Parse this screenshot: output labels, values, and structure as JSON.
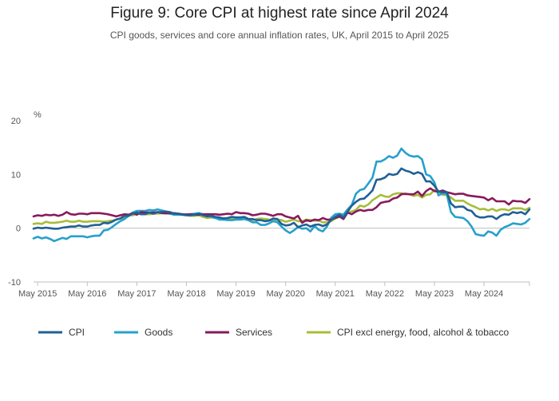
{
  "header": {
    "title": "Figure 9: Core CPI at highest rate since April 2024",
    "subtitle": "CPI goods, services and core annual inflation rates, UK, April 2015 to April 2025"
  },
  "chart_data": {
    "type": "line",
    "title": "Figure 9: Core CPI at highest rate since April 2024",
    "subtitle": "CPI goods, services and core annual inflation rates, UK, April 2015 to April 2025",
    "ylabel": "%",
    "ylim": [
      -10,
      20
    ],
    "yticks": [
      20,
      10,
      0,
      -10
    ],
    "xlim": [
      "2015-04",
      "2025-04"
    ],
    "xticks": [
      {
        "date": "2015-05",
        "label": "May 2015"
      },
      {
        "date": "2016-05",
        "label": "May 2016"
      },
      {
        "date": "2017-05",
        "label": "May 2017"
      },
      {
        "date": "2018-05",
        "label": "May 2018"
      },
      {
        "date": "2019-05",
        "label": "May 2019"
      },
      {
        "date": "2020-05",
        "label": "May 2020"
      },
      {
        "date": "2021-05",
        "label": "May 2021"
      },
      {
        "date": "2022-05",
        "label": "May 2022"
      },
      {
        "date": "2023-05",
        "label": "May 2023"
      },
      {
        "date": "2024-05",
        "label": "May 2024"
      }
    ],
    "grid": false,
    "legend_position": "bottom",
    "start_date": "2015-04",
    "series": [
      {
        "name": "CPI",
        "color": "#206095",
        "values": [
          -0.1,
          0.1,
          0.0,
          0.1,
          0.0,
          -0.1,
          -0.1,
          0.1,
          0.2,
          0.3,
          0.3,
          0.5,
          0.3,
          0.3,
          0.5,
          0.6,
          0.6,
          1.0,
          0.9,
          1.2,
          1.6,
          1.8,
          2.3,
          2.3,
          2.7,
          2.9,
          2.6,
          2.6,
          2.9,
          2.7,
          3.0,
          3.0,
          3.1,
          3.0,
          2.7,
          2.7,
          2.5,
          2.4,
          2.4,
          2.5,
          2.7,
          2.4,
          2.2,
          2.3,
          2.1,
          2.0,
          1.8,
          1.9,
          2.1,
          2.0,
          2.0,
          2.1,
          1.7,
          1.7,
          1.5,
          1.5,
          1.3,
          1.4,
          1.8,
          1.7,
          0.8,
          0.5,
          0.6,
          1.0,
          0.2,
          0.5,
          0.7,
          0.3,
          0.6,
          0.7,
          0.4,
          0.7,
          1.5,
          2.1,
          2.5,
          2.0,
          3.1,
          4.2,
          4.9,
          5.4,
          5.5,
          6.2,
          7.0,
          9.0,
          9.1,
          9.4,
          10.1,
          9.9,
          10.1,
          11.1,
          10.7,
          10.5,
          10.1,
          10.4,
          10.1,
          8.7,
          8.7,
          7.9,
          6.8,
          6.7,
          6.7,
          4.6,
          3.9,
          4.0,
          4.0,
          3.4,
          3.2,
          2.3,
          2.0,
          2.0,
          2.2,
          2.2,
          1.7,
          2.3,
          2.6,
          2.5,
          3.0,
          2.8,
          3.0,
          2.6,
          3.5
        ]
      },
      {
        "name": "Goods",
        "color": "#27a0cc",
        "values": [
          -1.9,
          -1.6,
          -1.9,
          -1.7,
          -2.0,
          -2.4,
          -2.1,
          -1.8,
          -2.0,
          -1.5,
          -1.5,
          -1.5,
          -1.5,
          -1.7,
          -1.5,
          -1.4,
          -1.4,
          -0.4,
          -0.3,
          0.2,
          0.8,
          1.3,
          1.7,
          2.3,
          2.9,
          3.2,
          3.2,
          3.2,
          3.4,
          3.3,
          3.5,
          3.3,
          3.1,
          2.7,
          2.5,
          2.5,
          2.5,
          2.6,
          2.6,
          2.7,
          2.8,
          2.6,
          2.4,
          2.1,
          1.9,
          1.6,
          1.6,
          1.5,
          1.5,
          1.6,
          1.6,
          1.7,
          1.5,
          1.1,
          1.1,
          0.6,
          0.6,
          0.9,
          1.3,
          1.1,
          0.3,
          -0.4,
          -0.9,
          -0.4,
          0.2,
          -0.1,
          0.0,
          -0.6,
          0.4,
          -0.3,
          -0.6,
          0.3,
          1.9,
          2.6,
          2.7,
          2.5,
          3.5,
          4.3,
          6.4,
          7.1,
          7.3,
          8.3,
          9.4,
          12.4,
          12.4,
          12.8,
          13.4,
          13.1,
          13.5,
          14.8,
          14.0,
          13.5,
          13.3,
          13.4,
          12.8,
          10.0,
          9.7,
          8.5,
          6.1,
          6.5,
          6.3,
          3.0,
          2.1,
          2.0,
          1.9,
          1.3,
          0.3,
          -1.1,
          -1.3,
          -1.4,
          -0.6,
          -0.8,
          -1.4,
          -0.3,
          0.2,
          0.5,
          0.9,
          0.8,
          0.7,
          1.0,
          1.7
        ]
      },
      {
        "name": "Services",
        "color": "#871a5b",
        "values": [
          2.2,
          2.4,
          2.3,
          2.5,
          2.4,
          2.5,
          2.3,
          2.5,
          3.0,
          2.6,
          2.5,
          2.7,
          2.7,
          2.6,
          2.8,
          2.8,
          2.8,
          2.7,
          2.6,
          2.4,
          2.2,
          2.4,
          2.6,
          2.5,
          2.8,
          2.5,
          3.0,
          2.9,
          2.9,
          2.9,
          3.0,
          2.8,
          2.8,
          2.8,
          2.8,
          2.7,
          2.6,
          2.5,
          2.6,
          2.5,
          2.5,
          2.6,
          2.6,
          2.6,
          2.6,
          2.5,
          2.6,
          2.7,
          2.6,
          3.0,
          2.8,
          2.8,
          2.7,
          2.4,
          2.5,
          2.7,
          2.7,
          2.5,
          2.3,
          2.6,
          2.6,
          2.2,
          2.0,
          1.8,
          2.3,
          1.0,
          1.5,
          1.3,
          1.6,
          1.5,
          1.9,
          1.6,
          1.6,
          1.9,
          2.2,
          1.7,
          2.9,
          2.6,
          3.1,
          3.4,
          3.2,
          3.4,
          3.4,
          3.9,
          4.7,
          4.9,
          5.0,
          5.5,
          5.7,
          6.3,
          6.4,
          6.3,
          6.3,
          6.8,
          6.0,
          6.9,
          7.4,
          6.9,
          6.8,
          7.0,
          6.7,
          6.5,
          6.3,
          6.4,
          6.4,
          6.1,
          6.0,
          5.9,
          5.8,
          5.7,
          5.2,
          5.6,
          5.0,
          5.0,
          5.0,
          4.4,
          5.1,
          5.0,
          5.0,
          4.7,
          5.4
        ]
      },
      {
        "name": "CPI excl energy, food, alcohol & tobacco",
        "color": "#a8bd3a",
        "values": [
          0.8,
          0.9,
          0.8,
          1.2,
          1.0,
          1.0,
          1.1,
          1.2,
          1.4,
          1.2,
          1.2,
          1.4,
          1.2,
          1.2,
          1.3,
          1.3,
          1.3,
          1.2,
          1.3,
          1.4,
          1.6,
          1.8,
          2.0,
          2.4,
          2.4,
          2.7,
          2.6,
          2.6,
          2.6,
          2.7,
          2.7,
          2.8,
          2.7,
          2.7,
          2.5,
          2.7,
          2.6,
          2.4,
          2.3,
          2.3,
          2.4,
          2.1,
          1.9,
          2.0,
          1.9,
          1.8,
          1.9,
          1.8,
          1.7,
          1.9,
          1.8,
          1.8,
          1.7,
          1.5,
          1.7,
          1.8,
          1.7,
          1.6,
          1.4,
          1.6,
          1.5,
          1.2,
          1.4,
          1.6,
          1.3,
          1.3,
          1.6,
          1.5,
          1.4,
          1.4,
          1.1,
          1.1,
          1.3,
          1.8,
          2.1,
          2.3,
          3.0,
          3.1,
          3.4,
          4.2,
          4.0,
          4.4,
          5.2,
          5.7,
          6.2,
          5.9,
          5.8,
          6.3,
          6.5,
          6.5,
          6.3,
          6.3,
          6.0,
          6.2,
          5.7,
          6.2,
          6.3,
          7.1,
          6.9,
          6.2,
          6.2,
          5.7,
          5.1,
          5.1,
          5.1,
          4.6,
          4.2,
          3.9,
          3.5,
          3.6,
          3.3,
          3.6,
          3.2,
          3.5,
          3.5,
          3.3,
          3.7,
          3.7,
          3.7,
          3.4,
          3.8
        ]
      }
    ]
  }
}
